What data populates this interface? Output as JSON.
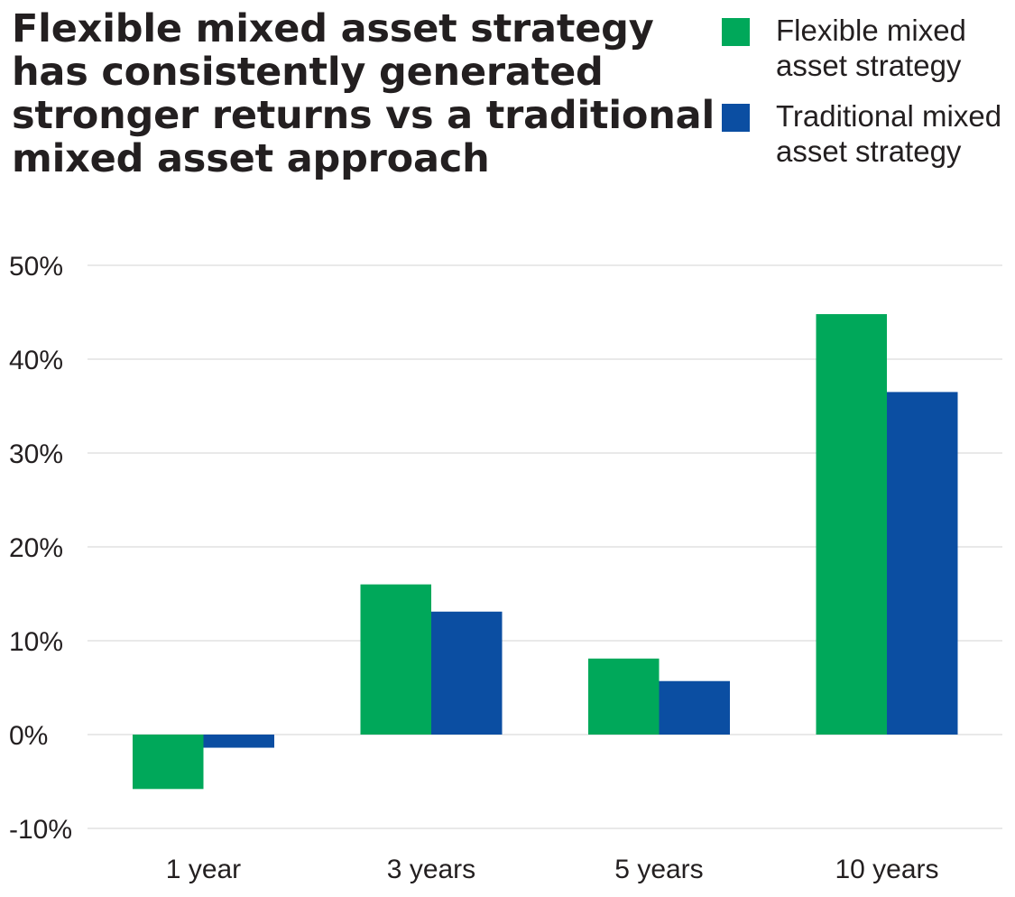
{
  "title_lines": [
    "Flexible mixed asset strategy",
    "has consistently generated",
    "stronger returns vs a traditional",
    "mixed asset approach"
  ],
  "legend": [
    {
      "label_lines": [
        "Flexible mixed",
        "asset strategy"
      ],
      "color": "#00a85a"
    },
    {
      "label_lines": [
        "Traditional mixed",
        "asset strategy"
      ],
      "color": "#0b4ea2"
    }
  ],
  "chart_data": {
    "type": "bar",
    "categories": [
      "1 year",
      "3 years",
      "5 years",
      "10 years"
    ],
    "series": [
      {
        "name": "Flexible mixed asset strategy",
        "values": [
          -5.8,
          16.0,
          8.1,
          44.8
        ],
        "color": "#00a85a"
      },
      {
        "name": "Traditional mixed asset strategy",
        "values": [
          -1.4,
          13.1,
          5.7,
          36.5
        ],
        "color": "#0b4ea2"
      }
    ],
    "title": "Flexible mixed asset strategy has consistently generated stronger returns vs a traditional mixed asset approach",
    "xlabel": "",
    "ylabel": "",
    "ylim": [
      -10,
      50
    ],
    "yticks": [
      50,
      40,
      30,
      20,
      10,
      0,
      -10
    ],
    "ytick_labels": [
      "50%",
      "40%",
      "30%",
      "20%",
      "10%",
      "0%",
      "-10%"
    ],
    "grid": true,
    "legend_position": "top-right"
  }
}
